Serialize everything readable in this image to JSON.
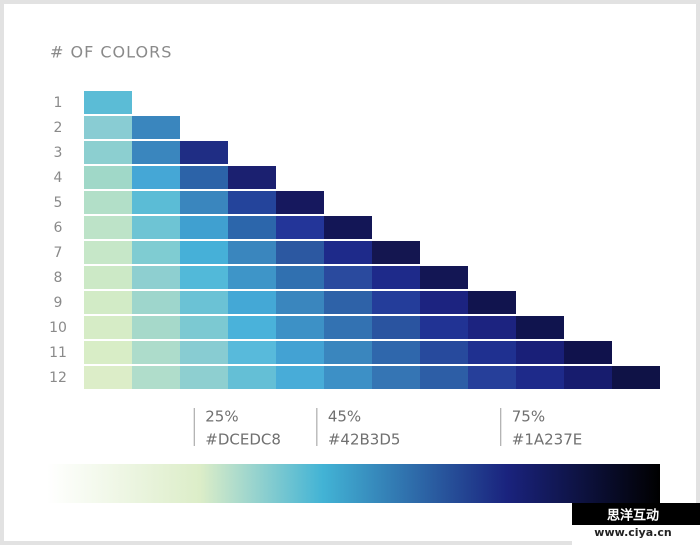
{
  "title": "# OF COLORS",
  "rows": [
    {
      "label": "1",
      "colors": [
        "#5bbcd6"
      ]
    },
    {
      "label": "2",
      "colors": [
        "#89ccd3",
        "#3a86be"
      ]
    },
    {
      "label": "3",
      "colors": [
        "#8ccfd0",
        "#3a86be",
        "#1f2d84"
      ]
    },
    {
      "label": "4",
      "colors": [
        "#a0d8c8",
        "#45a7d6",
        "#2c63a8",
        "#1b2070"
      ]
    },
    {
      "label": "5",
      "colors": [
        "#b2dfc8",
        "#5bbcd6",
        "#3a86be",
        "#24449b",
        "#16185e"
      ]
    },
    {
      "label": "6",
      "colors": [
        "#bde3c8",
        "#6ec4d4",
        "#40a0d0",
        "#2c66ab",
        "#233599",
        "#131656"
      ]
    },
    {
      "label": "7",
      "colors": [
        "#c6e7c8",
        "#7fccd2",
        "#46b0d8",
        "#3a86be",
        "#2c58a1",
        "#1e2a8a",
        "#141650"
      ]
    },
    {
      "label": "8",
      "colors": [
        "#cce9c6",
        "#8ecfd0",
        "#52b9d9",
        "#3e95c8",
        "#3070b0",
        "#2a4a9e",
        "#1e2a8a",
        "#131654"
      ]
    },
    {
      "label": "9",
      "colors": [
        "#d2ebc6",
        "#9ed6cc",
        "#6bc2d5",
        "#44a8d6",
        "#3a86be",
        "#2e62a8",
        "#243d9a",
        "#1c2380",
        "#11144e"
      ]
    },
    {
      "label": "10",
      "colors": [
        "#d6ecc6",
        "#a6d9ca",
        "#7cc9d2",
        "#4ab2da",
        "#3d91c6",
        "#3372b2",
        "#2a54a0",
        "#213394",
        "#1c2380",
        "#10144e"
      ]
    },
    {
      "label": "11",
      "colors": [
        "#d8edc6",
        "#addccb",
        "#88ccd2",
        "#58badb",
        "#43a2d3",
        "#3a86be",
        "#2f67ac",
        "#274a9d",
        "#1f3090",
        "#191f78",
        "#10124c"
      ]
    },
    {
      "label": "12",
      "colors": [
        "#dcedc8",
        "#b0ddcb",
        "#8ecfd0",
        "#64bfd6",
        "#48acd8",
        "#3d90c6",
        "#3575b4",
        "#2d5ea6",
        "#263f9a",
        "#1e2a8a",
        "#171c6e",
        "#0f1246"
      ]
    }
  ],
  "gradient": {
    "start_color": "#ffffff",
    "end_color": "#000000",
    "stops": [
      {
        "position": {
          "value": 25,
          "label": "25%"
        },
        "color": "#DCEDC8"
      },
      {
        "position": {
          "value": 45,
          "label": "45%"
        },
        "color": "#42B3D5"
      },
      {
        "position": {
          "value": 75,
          "label": "75%"
        },
        "color": "#1A237E"
      }
    ]
  },
  "watermark": {
    "brand": "思洋互动",
    "url": "www.ciya.cn"
  }
}
